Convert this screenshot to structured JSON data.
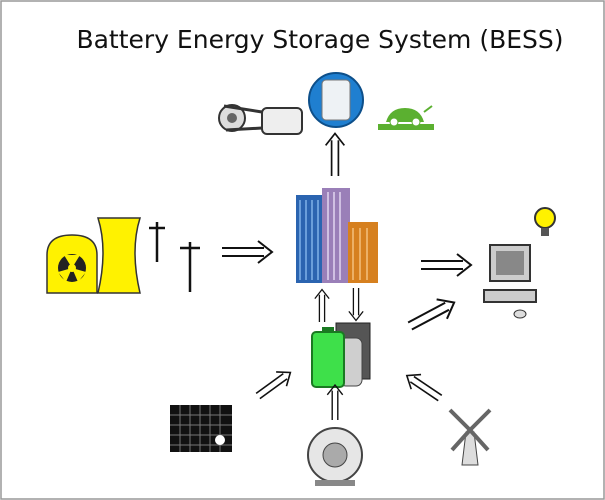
{
  "title": "Battery Energy Storage System (BESS)"
}
